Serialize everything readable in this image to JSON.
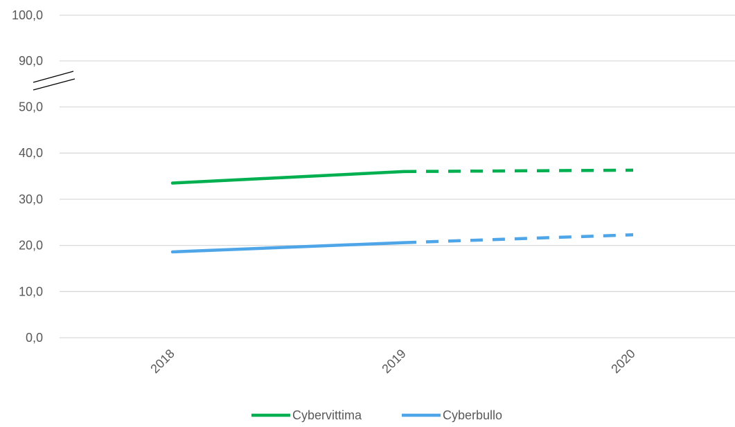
{
  "chart_data": {
    "type": "line",
    "title": "",
    "xlabel": "",
    "ylabel": "",
    "categories": [
      "2018",
      "2019",
      "2020"
    ],
    "y_ticks": [
      "0,0",
      "10,0",
      "20,0",
      "30,0",
      "40,0",
      "50,0",
      "90,0",
      "100,0"
    ],
    "y_tick_values": [
      0,
      10,
      20,
      30,
      40,
      50,
      90,
      100
    ],
    "axis_break": {
      "from": 50,
      "to": 90
    },
    "ylim": [
      0,
      100
    ],
    "grid": true,
    "legend_position": "bottom",
    "series": [
      {
        "name": "Cybervittima",
        "color": "#00b050",
        "values": [
          33.5,
          36.0,
          36.3
        ],
        "style": "solid 2018-2019, dashed 2019-2020"
      },
      {
        "name": "Cyberbullo",
        "color": "#4ea5e8",
        "values": [
          18.6,
          20.6,
          22.3
        ],
        "style": "solid 2018-2019, dashed 2019-2020"
      }
    ]
  }
}
